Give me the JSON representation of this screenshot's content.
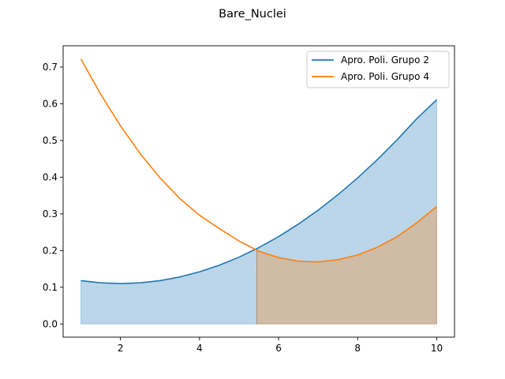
{
  "chart_data": {
    "type": "line",
    "title": "Bare_Nuclei",
    "xlabel": "",
    "ylabel": "",
    "xlim": [
      0.55,
      10.45
    ],
    "ylim": [
      -0.036,
      0.758
    ],
    "xticks": [
      2,
      4,
      6,
      8,
      10
    ],
    "xtick_labels": [
      "2",
      "4",
      "6",
      "8",
      "10"
    ],
    "yticks": [
      0.0,
      0.1,
      0.2,
      0.3,
      0.4,
      0.5,
      0.6,
      0.7
    ],
    "ytick_labels": [
      "0.0",
      "0.1",
      "0.2",
      "0.3",
      "0.4",
      "0.5",
      "0.6",
      "0.7"
    ],
    "grid": false,
    "legend_position": "top-right",
    "x": [
      1,
      1.5,
      2,
      2.5,
      3,
      3.5,
      4,
      4.5,
      5,
      5.5,
      6,
      6.5,
      7,
      7.5,
      8,
      8.5,
      9,
      9.5,
      10
    ],
    "series": [
      {
        "name": "Apro. Poli. Grupo 2",
        "color": "#1f77b4",
        "fill_color": "#1f77b4",
        "values": [
          0.118,
          0.112,
          0.11,
          0.112,
          0.118,
          0.128,
          0.142,
          0.16,
          0.182,
          0.208,
          0.238,
          0.272,
          0.31,
          0.352,
          0.398,
          0.448,
          0.502,
          0.56,
          0.611
        ]
      },
      {
        "name": "Apro. Poli. Grupo 4",
        "color": "#ff7f0e",
        "fill_color": "#ff7f0e",
        "values": [
          0.722,
          0.626,
          0.54,
          0.464,
          0.398,
          0.342,
          0.296,
          0.26,
          0.226,
          0.198,
          0.181,
          0.171,
          0.169,
          0.175,
          0.188,
          0.209,
          0.238,
          0.276,
          0.32
        ]
      }
    ],
    "shaded_regions": [
      {
        "series": "Apro. Poli. Grupo 2",
        "x_from": 1,
        "x_to": 5.45
      },
      {
        "series": "Apro. Poli. Grupo 2",
        "x_from": 5.45,
        "x_to": 10
      },
      {
        "series": "Apro. Poli. Grupo 4",
        "x_from": 5.45,
        "x_to": 10
      }
    ]
  }
}
